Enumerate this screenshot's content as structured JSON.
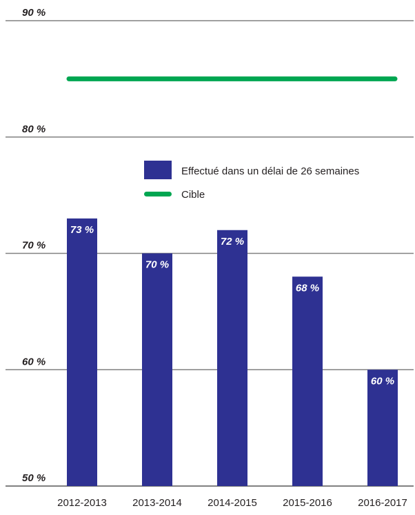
{
  "chart_data": {
    "type": "bar",
    "categories": [
      "2012-2013",
      "2013-2014",
      "2014-2015",
      "2015-2016",
      "2016-2017"
    ],
    "series": [
      {
        "name": "Effectué dans un délai de 26 semaines",
        "values": [
          73,
          70,
          72,
          68,
          60
        ],
        "data_labels": [
          "73 %",
          "70 %",
          "72 %",
          "68 %",
          "60 %"
        ],
        "color": "#2e3192"
      }
    ],
    "target": {
      "name": "Cible",
      "value": 85,
      "color": "#00a651"
    },
    "yticks": [
      {
        "value": 50,
        "label": "50 %"
      },
      {
        "value": 60,
        "label": "60 %"
      },
      {
        "value": 70,
        "label": "70 %"
      },
      {
        "value": 80,
        "label": "80 %"
      },
      {
        "value": 90,
        "label": "90 %"
      }
    ],
    "ylim": [
      50,
      90
    ],
    "grid": true,
    "legend_position": "center",
    "title": "",
    "xlabel": "",
    "ylabel": ""
  },
  "colors": {
    "bar": "#2e3192",
    "target": "#00a651",
    "grid": "#808080",
    "text": "#231f20"
  }
}
